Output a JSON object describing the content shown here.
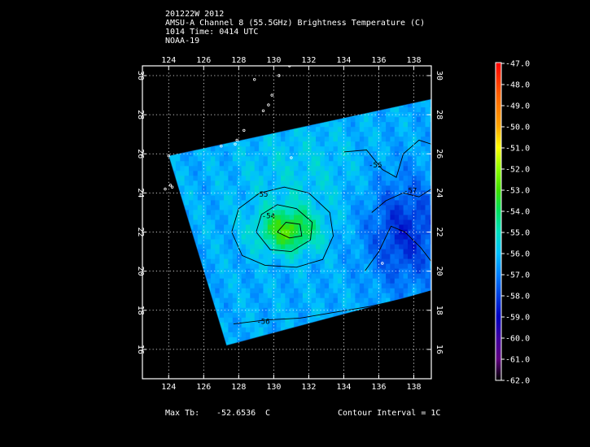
{
  "header": {
    "line1": "201222W 2012",
    "line2": "AMSU-A Channel 8 (55.5GHz) Brightness Temperature (C)",
    "line3": "1014 Time: 0414 UTC",
    "line4": "NOAA-19"
  },
  "footer": {
    "max_tb_label": "Max Tb:",
    "max_tb_value": "-52.6536",
    "max_tb_unit": "C",
    "contour_interval": "Contour Interval = 1C"
  },
  "colors": {
    "background": "#000000",
    "frame": "#ffffff",
    "grid": "#ffffff",
    "contour": "#000000",
    "coast": "#ffffff"
  },
  "chart_data": {
    "type": "heatmap",
    "xlim": [
      122.5,
      139.0
    ],
    "ylim": [
      14.5,
      30.5
    ],
    "x_ticks": [
      124,
      126,
      128,
      130,
      132,
      134,
      136,
      138
    ],
    "y_ticks": [
      16,
      18,
      20,
      22,
      24,
      26,
      28,
      30
    ],
    "grid": true,
    "swath_polygon": [
      [
        124.0,
        25.9
      ],
      [
        139.0,
        28.8
      ],
      [
        139.0,
        19.0
      ],
      [
        127.3,
        16.2
      ]
    ],
    "colorbar": {
      "placement": "right",
      "min": -62.0,
      "max": -47.0,
      "labels": [
        "-47.0",
        "-48.0",
        "-49.0",
        "-50.0",
        "-51.0",
        "-52.0",
        "-53.0",
        "-54.0",
        "-55.0",
        "-56.0",
        "-57.0",
        "-58.0",
        "-59.0",
        "-60.0",
        "-61.0",
        "-62.0"
      ],
      "stops": [
        [
          -47,
          "#ff0000"
        ],
        [
          -48.5,
          "#ff6000"
        ],
        [
          -50,
          "#ffa500"
        ],
        [
          -51,
          "#ffff00"
        ],
        [
          -52,
          "#90ff00"
        ],
        [
          -53,
          "#40e000"
        ],
        [
          -54,
          "#00e060"
        ],
        [
          -55,
          "#00e0c0"
        ],
        [
          -56,
          "#00c0ff"
        ],
        [
          -57,
          "#0080ff"
        ],
        [
          -58,
          "#0040e0"
        ],
        [
          -59,
          "#0000c0"
        ],
        [
          -60,
          "#4000a0"
        ],
        [
          -61,
          "#600080"
        ],
        [
          -62,
          "#000000"
        ]
      ]
    },
    "field_features": [
      {
        "kind": "warm_core",
        "lon": 130.8,
        "lat": 22.1,
        "sx": 1.7,
        "sy": 1.1,
        "amp": 3.2
      },
      {
        "kind": "warm_ridge",
        "lon": 131.5,
        "lat": 25.0,
        "sx": 3.5,
        "sy": 2.5,
        "amp": 0.6
      },
      {
        "kind": "cold_region",
        "lon": 137.5,
        "lat": 22.0,
        "sx": 2.2,
        "sy": 2.8,
        "amp": -2.0
      }
    ],
    "base_temperature": -56.3,
    "contours": [
      {
        "label": "-54",
        "label_at": [
          129.7,
          22.7
        ],
        "points": [
          [
            129.0,
            22.0
          ],
          [
            129.3,
            22.9
          ],
          [
            130.2,
            23.4
          ],
          [
            131.3,
            23.2
          ],
          [
            132.2,
            22.5
          ],
          [
            132.1,
            21.6
          ],
          [
            131.0,
            21.0
          ],
          [
            129.8,
            21.1
          ],
          [
            129.0,
            22.0
          ]
        ]
      },
      {
        "label": "-53",
        "label_at": null,
        "points": [
          [
            130.2,
            22.0
          ],
          [
            130.7,
            22.5
          ],
          [
            131.5,
            22.4
          ],
          [
            131.6,
            21.8
          ],
          [
            130.9,
            21.7
          ],
          [
            130.2,
            22.0
          ]
        ]
      },
      {
        "label": "-55",
        "label_at": [
          129.3,
          23.8
        ],
        "points": [
          [
            127.6,
            22.0
          ],
          [
            128.0,
            23.2
          ],
          [
            129.2,
            24.0
          ],
          [
            130.6,
            24.3
          ],
          [
            132.0,
            24.0
          ],
          [
            133.2,
            23.0
          ],
          [
            133.4,
            21.8
          ],
          [
            132.8,
            20.6
          ],
          [
            131.3,
            20.2
          ],
          [
            129.5,
            20.3
          ],
          [
            128.2,
            20.8
          ],
          [
            127.6,
            22.0
          ]
        ]
      },
      {
        "label": "-56",
        "label_at": [
          129.4,
          17.3
        ],
        "points": [
          [
            127.7,
            17.3
          ],
          [
            129.5,
            17.5
          ],
          [
            131.5,
            17.6
          ],
          [
            133.5,
            17.9
          ],
          [
            135.5,
            18.2
          ],
          [
            137.5,
            18.6
          ],
          [
            139.0,
            19.0
          ]
        ]
      },
      {
        "label": "-56",
        "label_at": [
          135.8,
          25.3
        ],
        "points": [
          [
            134.0,
            26.1
          ],
          [
            135.3,
            26.2
          ],
          [
            136.2,
            25.2
          ],
          [
            137.0,
            24.8
          ],
          [
            137.4,
            26.0
          ],
          [
            138.3,
            26.7
          ],
          [
            139.0,
            26.5
          ]
        ]
      },
      {
        "label": "-57",
        "label_at": [
          137.8,
          24.0
        ],
        "points": [
          [
            135.6,
            23.0
          ],
          [
            136.4,
            23.6
          ],
          [
            137.4,
            24.0
          ],
          [
            138.3,
            23.8
          ],
          [
            139.0,
            24.2
          ]
        ]
      },
      {
        "label": "",
        "label_at": null,
        "points": [
          [
            135.2,
            20.0
          ],
          [
            136.0,
            21.0
          ],
          [
            136.7,
            22.3
          ],
          [
            137.5,
            22.0
          ],
          [
            138.4,
            21.2
          ],
          [
            139.0,
            20.5
          ]
        ]
      }
    ]
  }
}
